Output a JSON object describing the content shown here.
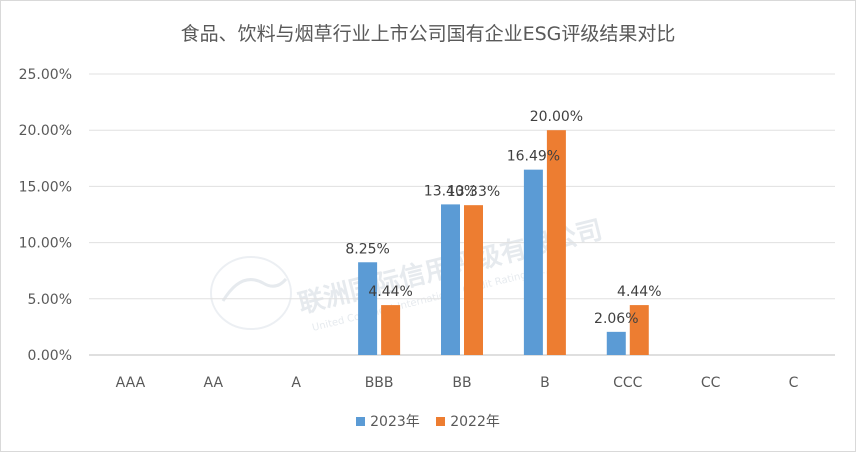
{
  "chart_data": {
    "type": "bar",
    "title": "食品、饮料与烟草行业上市公司国有企业ESG评级结果对比",
    "categories": [
      "AAA",
      "AA",
      "A",
      "BBB",
      "BB",
      "B",
      "CCC",
      "CC",
      "C"
    ],
    "series": [
      {
        "name": "2023年",
        "color": "#5b9bd5",
        "values": [
          0,
          0,
          0,
          8.25,
          13.4,
          16.49,
          2.06,
          0,
          0
        ],
        "labels": [
          "",
          "",
          "",
          "8.25%",
          "13.40%",
          "16.49%",
          "2.06%",
          "",
          ""
        ]
      },
      {
        "name": "2022年",
        "color": "#ed7d31",
        "values": [
          0,
          0,
          0,
          4.44,
          13.33,
          20.0,
          4.44,
          0,
          0
        ],
        "labels": [
          "",
          "",
          "",
          "4.44%",
          "13.33%",
          "20.00%",
          "4.44%",
          "",
          ""
        ]
      }
    ],
    "ylim": [
      0,
      25
    ],
    "yticks": [
      "0.00%",
      "5.00%",
      "10.00%",
      "15.00%",
      "20.00%",
      "25.00%"
    ],
    "grid": true,
    "legend_position": "bottom",
    "watermark": {
      "text_cn": "联洲国际信用评级有限公司",
      "text_en": "United Continent International Credit Rating Co.,Ltd"
    }
  }
}
